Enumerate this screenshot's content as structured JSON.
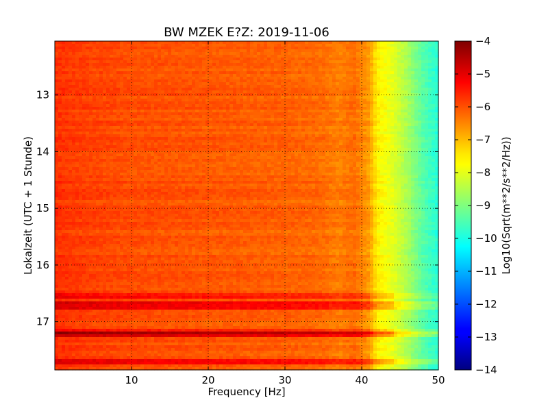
{
  "chart_data": {
    "type": "heatmap",
    "title": "BW MZEK E?Z: 2019-11-06",
    "xlabel": "Frequency [Hz]",
    "ylabel": "Lokalzeit (UTC + 1 Stunde)",
    "colorbar_label": "Log10(Sqrt(m**2/s**2/Hz))",
    "colormap": "jet",
    "xlim": [
      0,
      50
    ],
    "ylim": [
      17.85,
      12.05
    ],
    "y_inverted": true,
    "grid": true,
    "x_ticks": [
      10,
      20,
      30,
      40,
      50
    ],
    "x_tick_labels": [
      "10",
      "20",
      "30",
      "40",
      "50"
    ],
    "y_ticks": [
      13,
      14,
      15,
      16,
      17
    ],
    "y_tick_labels": [
      "13",
      "14",
      "15",
      "16",
      "17"
    ],
    "clim": [
      -14,
      -4
    ],
    "colorbar_ticks": [
      -4,
      -5,
      -6,
      -7,
      -8,
      -9,
      -10,
      -11,
      -12,
      -13,
      -14
    ],
    "colorbar_tick_labels": [
      "−4",
      "−5",
      "−6",
      "−7",
      "−8",
      "−9",
      "−10",
      "−11",
      "−12",
      "−13",
      "−14"
    ],
    "frequency_profile": {
      "frequency_hz": [
        0,
        2,
        5,
        10,
        20,
        30,
        35,
        37,
        39,
        41,
        42,
        44,
        46,
        48,
        50
      ],
      "log10_amplitude": [
        -5.7,
        -5.8,
        -5.9,
        -6.0,
        -6.1,
        -6.2,
        -6.3,
        -6.5,
        -6.3,
        -6.8,
        -7.6,
        -8.0,
        -8.6,
        -9.4,
        -9.9
      ]
    },
    "strong_bands": [
      {
        "time_from": 16.52,
        "time_to": 16.57,
        "delta": 0.7
      },
      {
        "time_from": 16.68,
        "time_to": 16.78,
        "delta": 0.9
      },
      {
        "time_from": 17.14,
        "time_to": 17.18,
        "delta": 0.6
      },
      {
        "time_from": 17.21,
        "time_to": 17.26,
        "delta": 1.0
      },
      {
        "time_from": 17.66,
        "time_to": 17.72,
        "delta": 0.9
      }
    ]
  }
}
